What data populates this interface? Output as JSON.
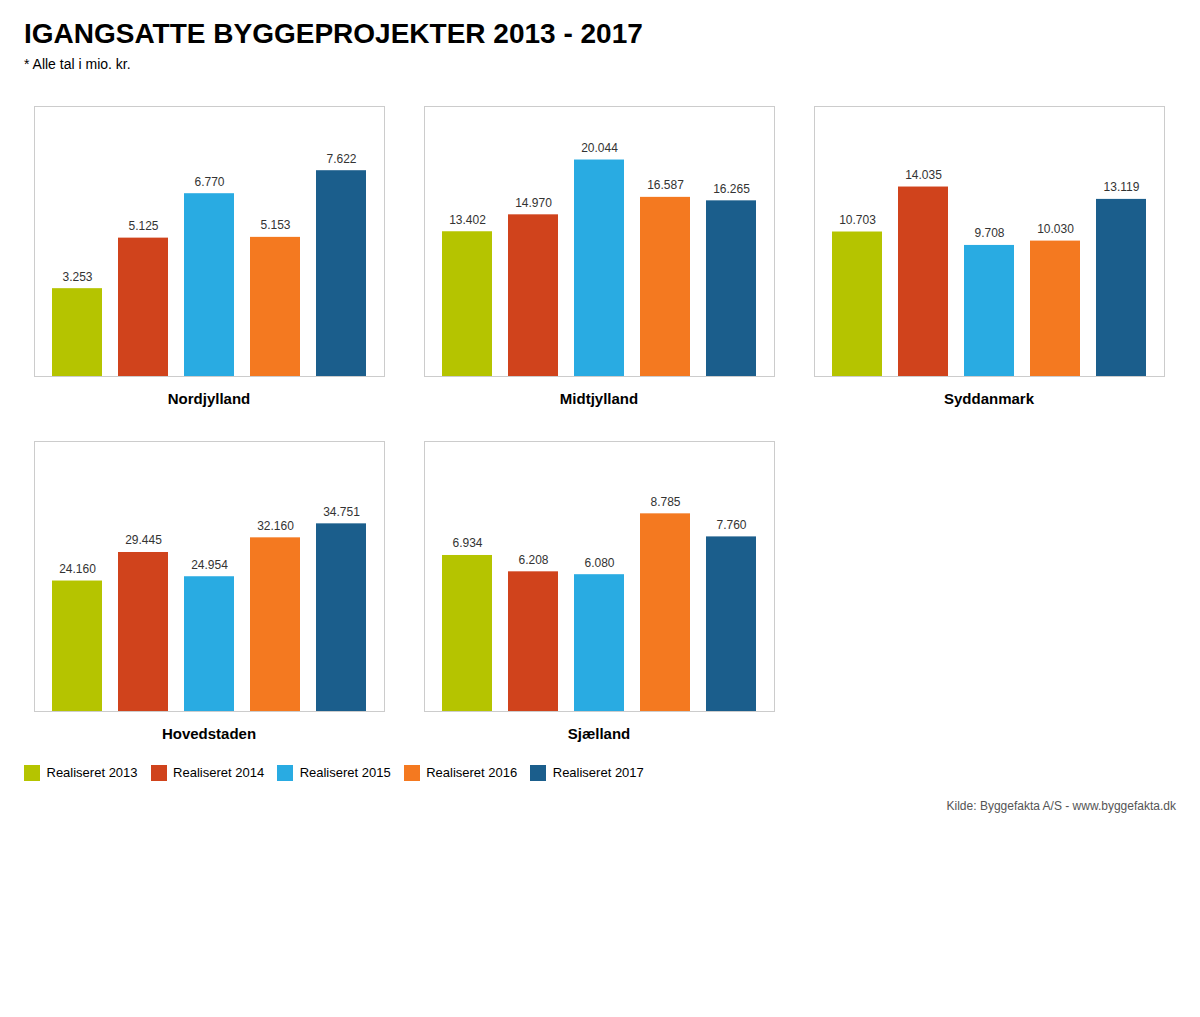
{
  "title": "IGANGSATTE BYGGEPROJEKTER 2013 - 2017",
  "subtitle": "* Alle tal i mio. kr.",
  "annotations": [
    "Kilde: Byggefakta A/S - www.byggefakta.dk"
  ],
  "legend": "bottom",
  "chart_data": [
    {
      "type": "bar",
      "title": "Nordjylland",
      "categories": [
        "Realiseret 2013",
        "Realiseret 2014",
        "Realiseret 2015",
        "Realiseret 2016",
        "Realiseret 2017"
      ],
      "colors": [
        "#b5c400",
        "#d0431c",
        "#29abe2",
        "#f47920",
        "#1b5e8c"
      ],
      "values": [
        3.253,
        5.125,
        6.77,
        5.153,
        7.622
      ],
      "value_labels": [
        "3.253",
        "5.125",
        "6.770",
        "5.153",
        "7.622"
      ],
      "ylim": [
        0,
        10
      ],
      "data_labels": true,
      "tick_labels": false,
      "grid": false
    },
    {
      "type": "bar",
      "title": "Midtjylland",
      "categories": [
        "Realiseret 2013",
        "Realiseret 2014",
        "Realiseret 2015",
        "Realiseret 2016",
        "Realiseret 2017"
      ],
      "colors": [
        "#b5c400",
        "#d0431c",
        "#29abe2",
        "#f47920",
        "#1b5e8c"
      ],
      "values": [
        13.402,
        14.97,
        20.044,
        16.587,
        16.265
      ],
      "value_labels": [
        "13.402",
        "14.970",
        "20.044",
        "16.587",
        "16.265"
      ],
      "ylim": [
        0,
        25
      ],
      "data_labels": true,
      "tick_labels": false,
      "grid": false
    },
    {
      "type": "bar",
      "title": "Syddanmark",
      "categories": [
        "Realiseret 2013",
        "Realiseret 2014",
        "Realiseret 2015",
        "Realiseret 2016",
        "Realiseret 2017"
      ],
      "colors": [
        "#b5c400",
        "#d0431c",
        "#29abe2",
        "#f47920",
        "#1b5e8c"
      ],
      "values": [
        10.703,
        14.035,
        9.708,
        10.03,
        13.119
      ],
      "value_labels": [
        "10.703",
        "14.035",
        "9.708",
        "10.030",
        "13.119"
      ],
      "ylim": [
        0,
        20
      ],
      "data_labels": true,
      "tick_labels": false,
      "grid": false
    },
    {
      "type": "bar",
      "title": "Hovedstaden",
      "categories": [
        "Realiseret 2013",
        "Realiseret 2014",
        "Realiseret 2015",
        "Realiseret 2016",
        "Realiseret 2017"
      ],
      "colors": [
        "#b5c400",
        "#d0431c",
        "#29abe2",
        "#f47920",
        "#1b5e8c"
      ],
      "values": [
        24.16,
        29.445,
        24.954,
        32.16,
        34.751
      ],
      "value_labels": [
        "24.160",
        "29.445",
        "24.954",
        "32.160",
        "34.751"
      ],
      "ylim": [
        0,
        50
      ],
      "data_labels": true,
      "tick_labels": false,
      "grid": false
    },
    {
      "type": "bar",
      "title": "Sjælland",
      "categories": [
        "Realiseret 2013",
        "Realiseret 2014",
        "Realiseret 2015",
        "Realiseret 2016",
        "Realiseret 2017"
      ],
      "colors": [
        "#b5c400",
        "#d0431c",
        "#29abe2",
        "#f47920",
        "#1b5e8c"
      ],
      "values": [
        6.934,
        6.208,
        6.08,
        8.785,
        7.76
      ],
      "value_labels": [
        "6.934",
        "6.208",
        "6.080",
        "8.785",
        "7.760"
      ],
      "ylim": [
        0,
        12
      ],
      "data_labels": true,
      "tick_labels": false,
      "grid": false
    }
  ]
}
